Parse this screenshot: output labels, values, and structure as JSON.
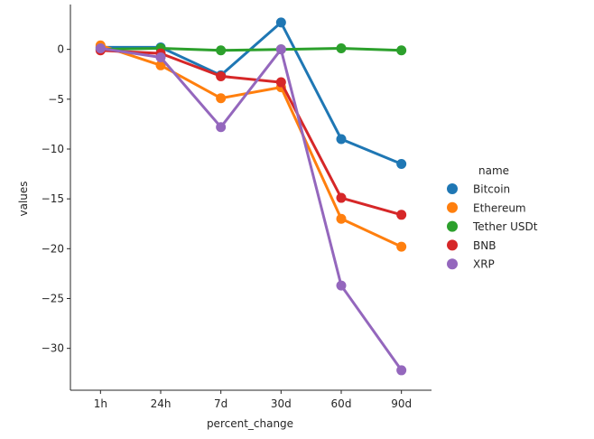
{
  "chart_data": {
    "type": "line",
    "xlabel": "percent_change",
    "ylabel": "values",
    "categories": [
      "1h",
      "24h",
      "7d",
      "30d",
      "60d",
      "90d"
    ],
    "ylim": [
      -34.2,
      4.5
    ],
    "yticks": [
      0,
      -5,
      -10,
      -15,
      -20,
      -25,
      -30
    ],
    "grid": false,
    "legend": {
      "title": "name",
      "placement": "right"
    },
    "series": [
      {
        "name": "Bitcoin",
        "color": "#1f77b4",
        "values": [
          0.2,
          0.2,
          -2.6,
          2.7,
          -9.0,
          -11.5
        ]
      },
      {
        "name": "Ethereum",
        "color": "#ff7f0e",
        "values": [
          0.4,
          -1.6,
          -4.9,
          -3.8,
          -17.0,
          -19.8
        ]
      },
      {
        "name": "Tether USDt",
        "color": "#2ca02c",
        "values": [
          0.0,
          0.1,
          -0.1,
          0.0,
          0.1,
          -0.1
        ]
      },
      {
        "name": "BNB",
        "color": "#d62728",
        "values": [
          -0.1,
          -0.4,
          -2.7,
          -3.3,
          -14.9,
          -16.6
        ]
      },
      {
        "name": "XRP",
        "color": "#9467bd",
        "values": [
          0.1,
          -0.8,
          -7.8,
          0.0,
          -23.7,
          -32.2
        ]
      }
    ]
  }
}
